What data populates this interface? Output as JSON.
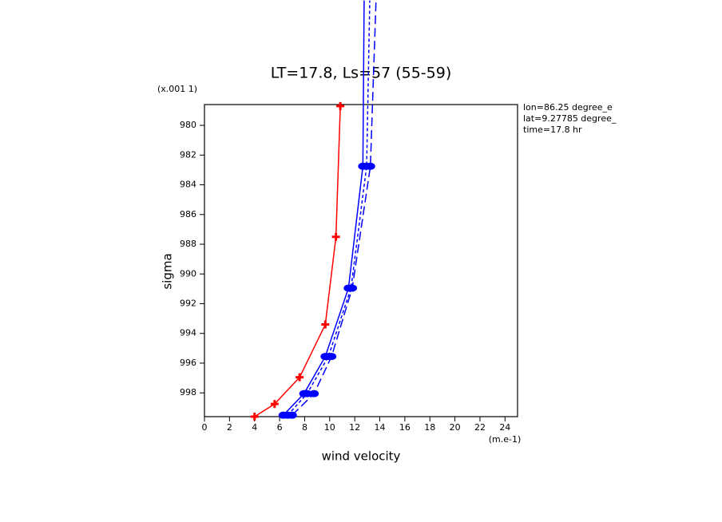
{
  "chart_data": {
    "type": "line",
    "title": "LT=17.8, Ls=57 (55-59)",
    "y_unit_label": "(x.001 1)",
    "ylabel": "sigma",
    "xlabel": "wind velocity",
    "x_unit_label": "(m.e-1)",
    "annotations": [
      "lon=86.25 degree_e",
      "lat=9.27785 degree_",
      "time=17.8 hr"
    ],
    "xlim": [
      0,
      25
    ],
    "xticks": [
      0,
      2,
      4,
      6,
      8,
      10,
      12,
      14,
      16,
      18,
      20,
      22,
      24
    ],
    "ylim": [
      999.6,
      978.6
    ],
    "yticks": [
      980,
      982,
      984,
      986,
      988,
      990,
      992,
      994,
      996,
      998
    ],
    "series": [
      {
        "color": "#ff0000",
        "linestyle": "solid",
        "marker": "plus",
        "x": [
          4.0,
          5.6,
          7.6,
          9.65,
          10.5,
          10.85
        ],
        "y": [
          999.6,
          998.75,
          996.95,
          993.4,
          987.5,
          978.7
        ]
      },
      {
        "color": "#0000ff",
        "linestyle": "solid",
        "marker": "dot",
        "x": [
          6.3,
          7.95,
          9.65,
          11.5,
          12.65,
          12.75
        ],
        "y": [
          999.5,
          998.05,
          995.55,
          990.95,
          982.75,
          971.6
        ]
      },
      {
        "color": "#0000ff",
        "linestyle": "short-dash",
        "marker": "dot",
        "x": [
          6.65,
          8.2,
          9.9,
          11.7,
          12.95,
          13.2
        ],
        "y": [
          999.5,
          998.05,
          995.55,
          990.95,
          982.75,
          971.6
        ]
      },
      {
        "color": "#0000ff",
        "linestyle": "long-dash",
        "marker": "dot",
        "x": [
          7.0,
          8.75,
          10.15,
          11.8,
          13.25,
          13.7
        ],
        "y": [
          999.5,
          998.05,
          995.55,
          990.95,
          982.75,
          971.6
        ]
      }
    ]
  }
}
